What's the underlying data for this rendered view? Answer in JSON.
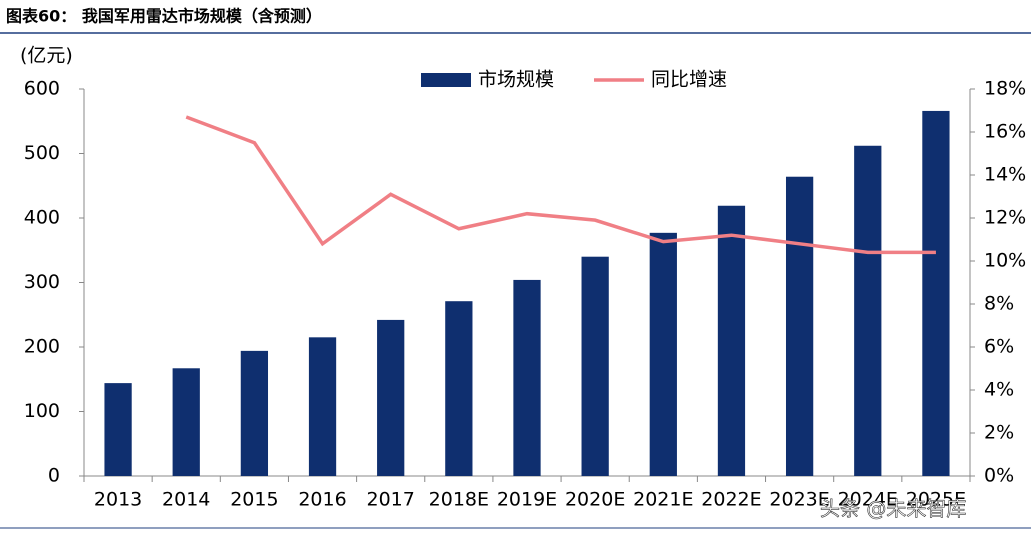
{
  "header": {
    "title": "图表60：  我国军用雷达市场规模（含预测）"
  },
  "chart_data": {
    "type": "bar-line",
    "y_axis_label": "(亿元)",
    "categories": [
      "2013",
      "2014",
      "2015",
      "2016",
      "2017",
      "2018E",
      "2019E",
      "2020E",
      "2021E",
      "2022E",
      "2023E",
      "2024E",
      "2025E"
    ],
    "series": [
      {
        "name": "市场规模",
        "type": "bar",
        "color": "#0f2f6f",
        "values": [
          144,
          167,
          194,
          215,
          242,
          271,
          304,
          340,
          377,
          419,
          464,
          512,
          566
        ]
      },
      {
        "name": "同比增速",
        "type": "line",
        "axis": "y2",
        "color": "#f07f85",
        "values": [
          null,
          16.7,
          15.5,
          10.8,
          13.1,
          11.5,
          12.2,
          11.9,
          10.9,
          11.2,
          10.8,
          10.4,
          10.4
        ]
      }
    ],
    "ylim": [
      0,
      600
    ],
    "yticks": [
      0,
      100,
      200,
      300,
      400,
      500,
      600
    ],
    "y2lim": [
      0,
      18
    ],
    "y2ticks": [
      {
        "value": 0,
        "label": "0%"
      },
      {
        "value": 2,
        "label": "2%"
      },
      {
        "value": 4,
        "label": "4%"
      },
      {
        "value": 6,
        "label": "6%"
      },
      {
        "value": 8,
        "label": "8%"
      },
      {
        "value": 10,
        "label": "10%"
      },
      {
        "value": 12,
        "label": "12%"
      },
      {
        "value": 14,
        "label": "14%"
      },
      {
        "value": 16,
        "label": "16%"
      },
      {
        "value": 18,
        "label": "18%"
      }
    ],
    "legend": "top-center"
  },
  "watermark": "头条 @未来智库"
}
